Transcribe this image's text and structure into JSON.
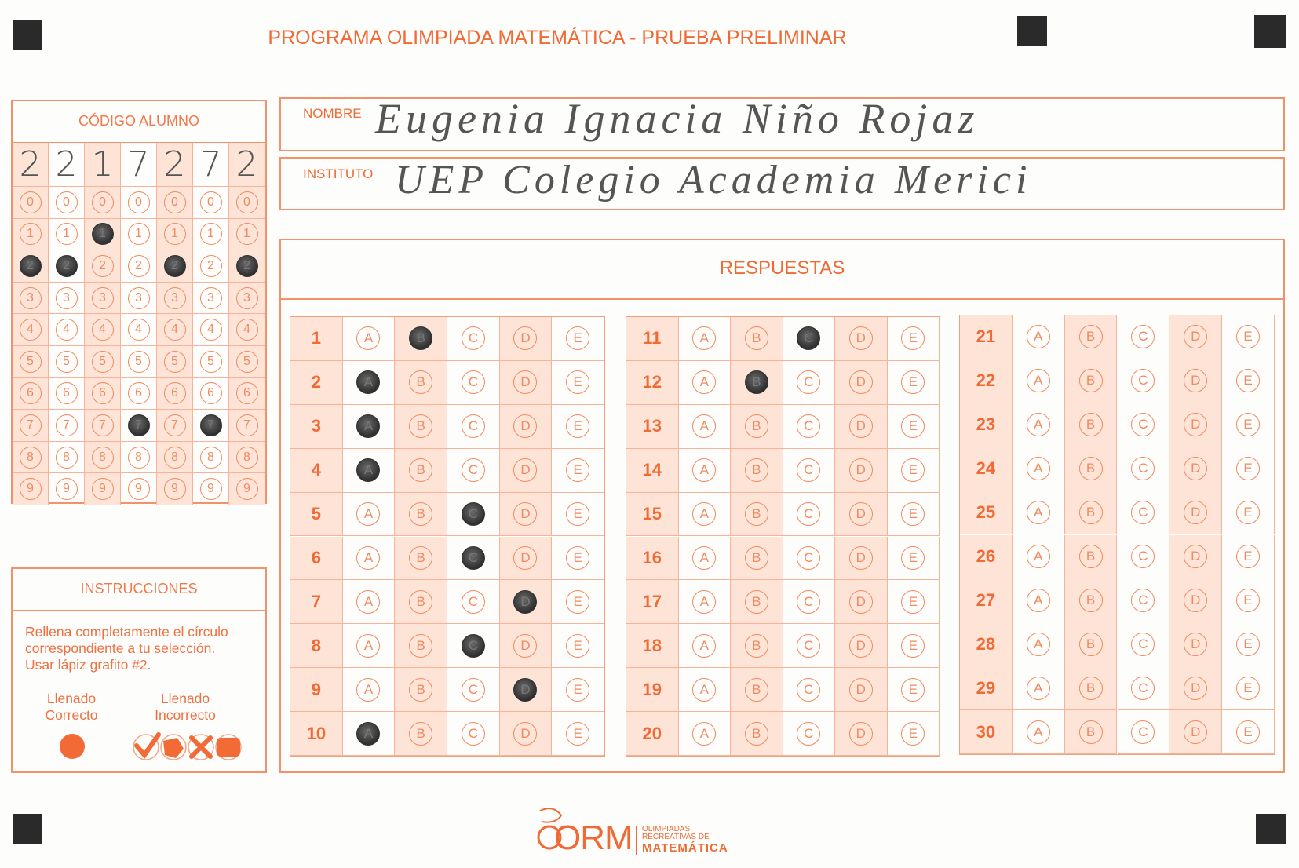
{
  "title": "PROGRAMA OLIMPIADA MATEMÁTICA  - PRUEBA PRELIMINAR",
  "student_code": {
    "label": "CÓDIGO ALUMNO",
    "handwritten_digits": [
      "2",
      "2",
      "1",
      "7",
      "2",
      "7",
      "2"
    ],
    "digits": [
      "0",
      "1",
      "2",
      "3",
      "4",
      "5",
      "6",
      "7",
      "8",
      "9"
    ],
    "filled": [
      2,
      2,
      1,
      7,
      2,
      7,
      2
    ]
  },
  "name": {
    "label": "NOMBRE",
    "value": "Eugenia Ignacia Niño Rojaz"
  },
  "institute": {
    "label": "INSTITUTO",
    "value": "UEP Colegio Academia Merici"
  },
  "answers": {
    "label": "RESPUESTAS",
    "options": [
      "A",
      "B",
      "C",
      "D",
      "E"
    ],
    "questions": [
      {
        "n": "1",
        "mark": "B"
      },
      {
        "n": "2",
        "mark": "A"
      },
      {
        "n": "3",
        "mark": "A"
      },
      {
        "n": "4",
        "mark": "A"
      },
      {
        "n": "5",
        "mark": "C"
      },
      {
        "n": "6",
        "mark": "C"
      },
      {
        "n": "7",
        "mark": "D"
      },
      {
        "n": "8",
        "mark": "C"
      },
      {
        "n": "9",
        "mark": "D"
      },
      {
        "n": "10",
        "mark": "A"
      },
      {
        "n": "11",
        "mark": "C"
      },
      {
        "n": "12",
        "mark": "B"
      },
      {
        "n": "13",
        "mark": null
      },
      {
        "n": "14",
        "mark": null
      },
      {
        "n": "15",
        "mark": null
      },
      {
        "n": "16",
        "mark": null
      },
      {
        "n": "17",
        "mark": null
      },
      {
        "n": "18",
        "mark": null
      },
      {
        "n": "19",
        "mark": null
      },
      {
        "n": "20",
        "mark": null
      },
      {
        "n": "21",
        "mark": null
      },
      {
        "n": "22",
        "mark": null
      },
      {
        "n": "23",
        "mark": null
      },
      {
        "n": "24",
        "mark": null
      },
      {
        "n": "25",
        "mark": null
      },
      {
        "n": "26",
        "mark": null
      },
      {
        "n": "27",
        "mark": null
      },
      {
        "n": "28",
        "mark": null
      },
      {
        "n": "29",
        "mark": null
      },
      {
        "n": "30",
        "mark": null
      }
    ]
  },
  "instructions": {
    "label": "INSTRUCCIONES",
    "lines": [
      "Rellena completamente el círculo",
      "correspondiente a tu selección.",
      "Usar lápiz grafito #2."
    ],
    "correct_label": [
      "Llenado",
      "Correcto"
    ],
    "incorrect_label": [
      "Llenado",
      "Incorrecto"
    ]
  },
  "logo": {
    "letters": "ORM",
    "line1": "OLIMPIADAS",
    "line2": "RECREATIVAS DE",
    "line3": "MATEMÁTICA"
  },
  "colors": {
    "accent": "#f06a35",
    "shade": "#fde4d7",
    "pencil": "#333333"
  }
}
